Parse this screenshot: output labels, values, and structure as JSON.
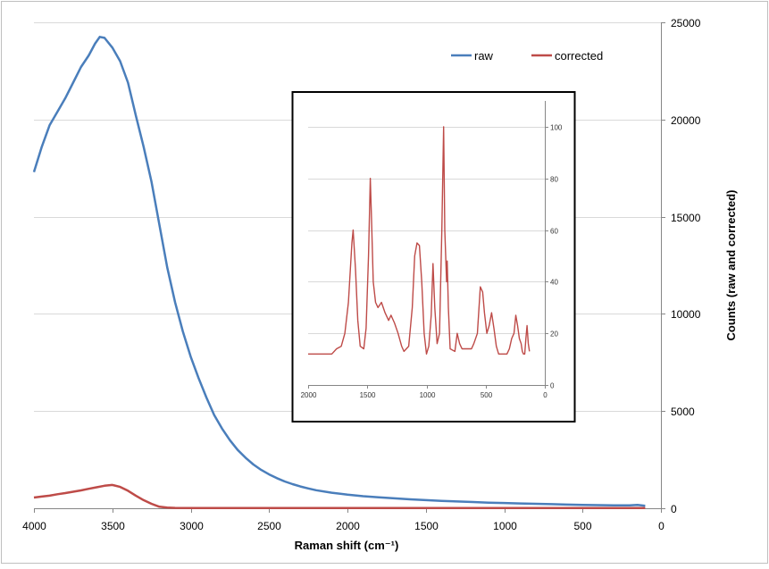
{
  "chart_data": [
    {
      "type": "line",
      "title": "",
      "xlabel": "Raman shift (cm⁻¹)",
      "ylabel": "Counts (raw and corrected)",
      "xlim": [
        4000,
        0
      ],
      "ylim": [
        0,
        25000
      ],
      "x_ticks": [
        4000,
        3500,
        3000,
        2500,
        2000,
        1500,
        1000,
        500,
        0
      ],
      "y_ticks": [
        0,
        5000,
        10000,
        15000,
        20000,
        25000
      ],
      "grid": "horizontal",
      "legend_position": "top-right",
      "series": [
        {
          "name": "raw",
          "color": "#4a7ebb",
          "points": [
            [
              4000,
              17300
            ],
            [
              3950,
              18600
            ],
            [
              3900,
              19700
            ],
            [
              3850,
              20400
            ],
            [
              3800,
              21100
            ],
            [
              3750,
              21900
            ],
            [
              3700,
              22700
            ],
            [
              3650,
              23300
            ],
            [
              3610,
              23900
            ],
            [
              3580,
              24250
            ],
            [
              3550,
              24200
            ],
            [
              3500,
              23700
            ],
            [
              3450,
              23000
            ],
            [
              3400,
              21900
            ],
            [
              3350,
              20200
            ],
            [
              3300,
              18600
            ],
            [
              3250,
              16800
            ],
            [
              3200,
              14600
            ],
            [
              3150,
              12400
            ],
            [
              3100,
              10600
            ],
            [
              3050,
              9100
            ],
            [
              3000,
              7800
            ],
            [
              2950,
              6700
            ],
            [
              2900,
              5700
            ],
            [
              2850,
              4800
            ],
            [
              2800,
              4100
            ],
            [
              2750,
              3500
            ],
            [
              2700,
              3000
            ],
            [
              2650,
              2600
            ],
            [
              2600,
              2250
            ],
            [
              2550,
              1970
            ],
            [
              2500,
              1740
            ],
            [
              2450,
              1550
            ],
            [
              2400,
              1380
            ],
            [
              2350,
              1240
            ],
            [
              2300,
              1120
            ],
            [
              2250,
              1020
            ],
            [
              2200,
              930
            ],
            [
              2100,
              800
            ],
            [
              2000,
              700
            ],
            [
              1900,
              620
            ],
            [
              1800,
              560
            ],
            [
              1700,
              510
            ],
            [
              1600,
              460
            ],
            [
              1500,
              420
            ],
            [
              1400,
              380
            ],
            [
              1300,
              350
            ],
            [
              1200,
              320
            ],
            [
              1100,
              290
            ],
            [
              1000,
              270
            ],
            [
              900,
              250
            ],
            [
              800,
              230
            ],
            [
              700,
              210
            ],
            [
              600,
              190
            ],
            [
              500,
              175
            ],
            [
              400,
              160
            ],
            [
              300,
              150
            ],
            [
              200,
              150
            ],
            [
              150,
              170
            ],
            [
              100,
              130
            ]
          ]
        },
        {
          "name": "corrected",
          "color": "#be4b48",
          "points": [
            [
              4000,
              550
            ],
            [
              3950,
              600
            ],
            [
              3900,
              650
            ],
            [
              3850,
              720
            ],
            [
              3800,
              780
            ],
            [
              3750,
              850
            ],
            [
              3700,
              920
            ],
            [
              3650,
              1000
            ],
            [
              3600,
              1080
            ],
            [
              3550,
              1160
            ],
            [
              3500,
              1200
            ],
            [
              3450,
              1100
            ],
            [
              3400,
              900
            ],
            [
              3350,
              650
            ],
            [
              3300,
              420
            ],
            [
              3250,
              230
            ],
            [
              3200,
              80
            ],
            [
              3150,
              30
            ],
            [
              3100,
              20
            ],
            [
              3000,
              15
            ],
            [
              2500,
              10
            ],
            [
              2000,
              10
            ],
            [
              1500,
              15
            ],
            [
              1000,
              10
            ],
            [
              500,
              10
            ],
            [
              100,
              10
            ]
          ]
        }
      ]
    },
    {
      "type": "line",
      "title": "",
      "xlabel": "",
      "ylabel": "",
      "xlim": [
        2000,
        0
      ],
      "ylim": [
        0,
        110
      ],
      "x_ticks": [
        2000,
        1500,
        1000,
        500,
        0
      ],
      "y_ticks": [
        0,
        20,
        40,
        60,
        80,
        100
      ],
      "grid": "horizontal",
      "series": [
        {
          "name": "",
          "color": "#be4b48",
          "points": [
            [
              2000,
              12
            ],
            [
              1900,
              12
            ],
            [
              1800,
              12
            ],
            [
              1760,
              14
            ],
            [
              1720,
              15
            ],
            [
              1690,
              20
            ],
            [
              1660,
              32
            ],
            [
              1630,
              55
            ],
            [
              1620,
              60
            ],
            [
              1600,
              45
            ],
            [
              1580,
              25
            ],
            [
              1560,
              15
            ],
            [
              1530,
              14
            ],
            [
              1510,
              22
            ],
            [
              1490,
              50
            ],
            [
              1475,
              80
            ],
            [
              1465,
              65
            ],
            [
              1450,
              40
            ],
            [
              1430,
              32
            ],
            [
              1410,
              30
            ],
            [
              1380,
              32
            ],
            [
              1350,
              28
            ],
            [
              1320,
              25
            ],
            [
              1300,
              27
            ],
            [
              1270,
              24
            ],
            [
              1240,
              20
            ],
            [
              1210,
              15
            ],
            [
              1190,
              13
            ],
            [
              1150,
              15
            ],
            [
              1120,
              30
            ],
            [
              1100,
              50
            ],
            [
              1080,
              55
            ],
            [
              1060,
              54
            ],
            [
              1040,
              40
            ],
            [
              1020,
              20
            ],
            [
              1000,
              12
            ],
            [
              980,
              15
            ],
            [
              960,
              27
            ],
            [
              945,
              47
            ],
            [
              930,
              30
            ],
            [
              910,
              16
            ],
            [
              890,
              20
            ],
            [
              870,
              60
            ],
            [
              855,
              100
            ],
            [
              845,
              60
            ],
            [
              830,
              40
            ],
            [
              825,
              48
            ],
            [
              815,
              30
            ],
            [
              800,
              14
            ],
            [
              760,
              13
            ],
            [
              740,
              20
            ],
            [
              720,
              16
            ],
            [
              700,
              14
            ],
            [
              650,
              14
            ],
            [
              620,
              14
            ],
            [
              600,
              16
            ],
            [
              570,
              20
            ],
            [
              545,
              38
            ],
            [
              525,
              36
            ],
            [
              510,
              28
            ],
            [
              490,
              20
            ],
            [
              470,
              23
            ],
            [
              450,
              28
            ],
            [
              430,
              22
            ],
            [
              410,
              15
            ],
            [
              390,
              12
            ],
            [
              350,
              12
            ],
            [
              320,
              12
            ],
            [
              300,
              14
            ],
            [
              280,
              18
            ],
            [
              260,
              20
            ],
            [
              245,
              27
            ],
            [
              230,
              23
            ],
            [
              215,
              18
            ],
            [
              200,
              16
            ],
            [
              190,
              13
            ],
            [
              180,
              12
            ],
            [
              170,
              12
            ],
            [
              160,
              18
            ],
            [
              150,
              23
            ],
            [
              140,
              16
            ],
            [
              130,
              13
            ]
          ]
        }
      ]
    }
  ]
}
